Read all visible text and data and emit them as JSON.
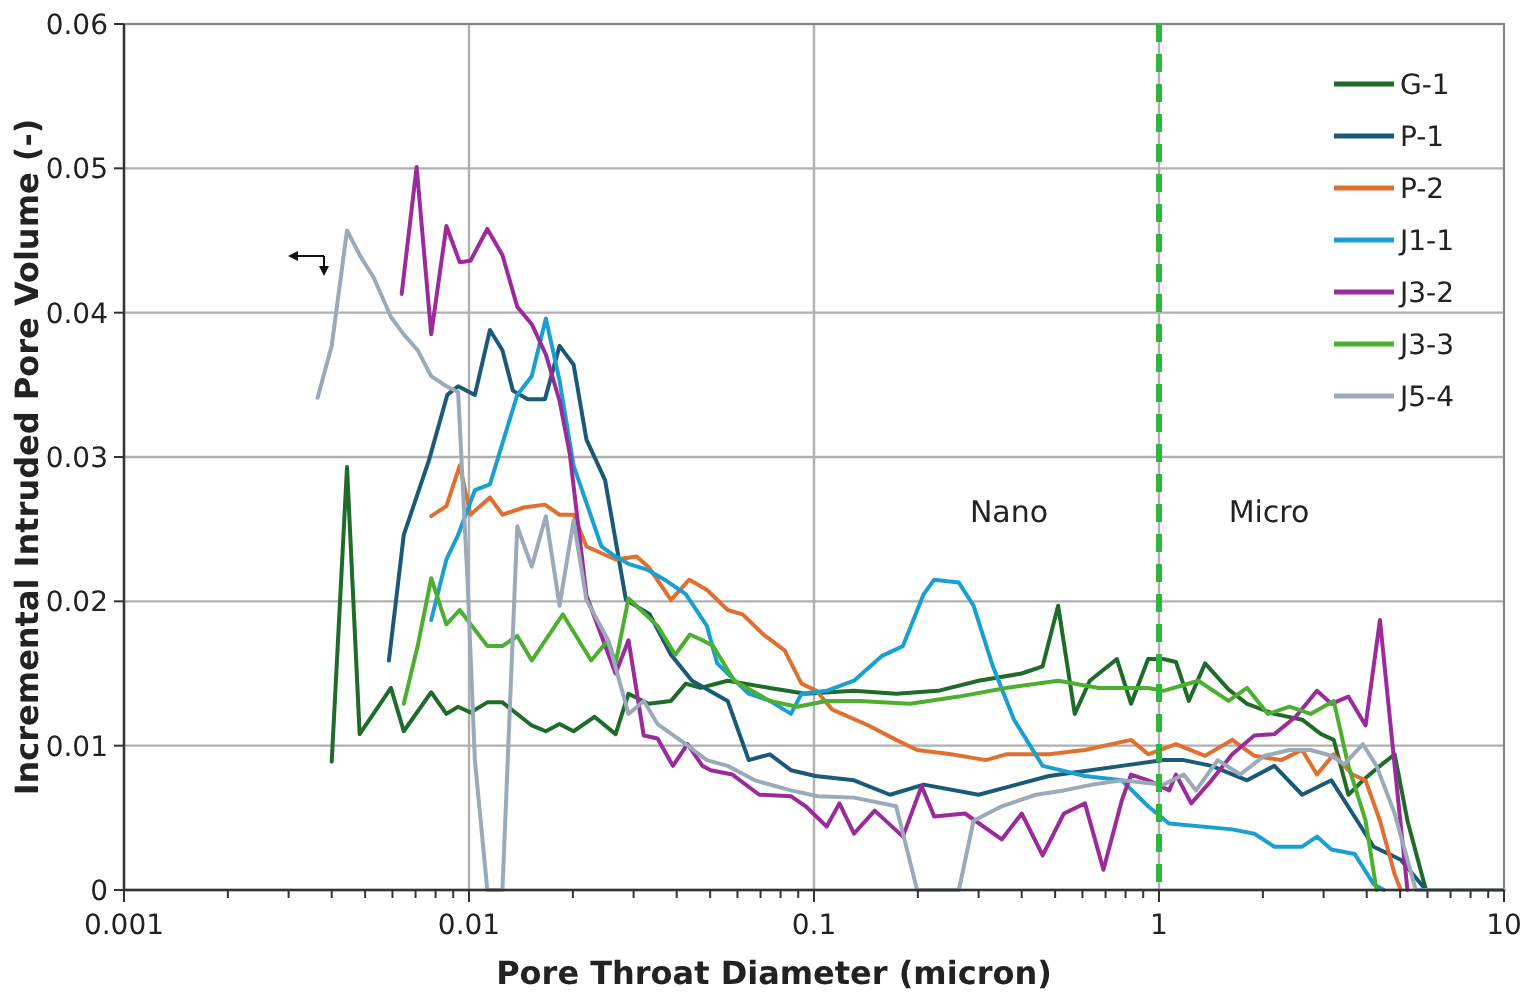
{
  "chart_data": {
    "type": "line",
    "xlabel": "Pore Throat Diameter (micron)",
    "ylabel": "Incremental Intruded Pore Volume (-)",
    "log": "x",
    "grid": true,
    "legend": "top right",
    "line_style": "solid",
    "xlim": [
      0.001,
      10
    ],
    "ylim": [
      0,
      0.06
    ],
    "yticks": [
      0,
      0.01,
      0.02,
      0.03,
      0.04,
      0.05,
      0.06
    ],
    "xticks": [
      0.001,
      {
        "value": 0.002,
        "label": null
      },
      {
        "value": 0.003,
        "label": null
      },
      {
        "value": 0.004,
        "label": null
      },
      {
        "value": 0.005,
        "label": null
      },
      {
        "value": 0.006,
        "label": null
      },
      {
        "value": 0.007,
        "label": null
      },
      {
        "value": 0.008,
        "label": null
      },
      {
        "value": 0.009,
        "label": null
      },
      0.01,
      {
        "value": 0.02,
        "label": null
      },
      {
        "value": 0.03,
        "label": null
      },
      {
        "value": 0.04,
        "label": null
      },
      {
        "value": 0.05,
        "label": null
      },
      {
        "value": 0.06,
        "label": null
      },
      {
        "value": 0.07,
        "label": null
      },
      {
        "value": 0.08,
        "label": null
      },
      {
        "value": 0.09,
        "label": null
      },
      0.1,
      {
        "value": 0.2,
        "label": null
      },
      {
        "value": 0.3,
        "label": null
      },
      {
        "value": 0.4,
        "label": null
      },
      {
        "value": 0.5,
        "label": null
      },
      {
        "value": 0.6,
        "label": null
      },
      {
        "value": 0.7,
        "label": null
      },
      {
        "value": 0.8,
        "label": null
      },
      {
        "value": 0.9,
        "label": null
      },
      1,
      {
        "value": 2,
        "label": null
      },
      {
        "value": 3,
        "label": null
      },
      {
        "value": 4,
        "label": null
      },
      {
        "value": 5,
        "label": null
      },
      {
        "value": 6,
        "label": null
      },
      {
        "value": 7,
        "label": null
      },
      {
        "value": 8,
        "label": null
      },
      {
        "value": 9,
        "label": null
      },
      10
    ],
    "ref_lines": [
      {
        "axis": "x",
        "value": 1,
        "color": "#2db83d",
        "line_style": "dashed"
      }
    ],
    "annotations": [
      "Nano",
      "Micro"
    ],
    "series": [
      {
        "name": "G-1",
        "color": "#1e6b2a",
        "x": [
          0.004,
          0.00443,
          0.00482,
          0.00594,
          0.00647,
          0.00777,
          0.0086,
          0.0093,
          0.0101,
          0.0113,
          0.0125,
          0.0152,
          0.0167,
          0.0183,
          0.0201,
          0.0231,
          0.0266,
          0.029,
          0.0331,
          0.0385,
          0.0425,
          0.0469,
          0.0562,
          0.0745,
          0.0946,
          0.1306,
          0.173,
          0.229,
          0.3,
          0.4,
          0.46,
          0.51,
          0.57,
          0.63,
          0.755,
          0.83,
          0.93,
          1.03,
          1.12,
          1.22,
          1.36,
          1.59,
          1.8,
          2.16,
          2.6,
          2.95,
          3.21,
          3.54,
          3.9,
          4.37,
          4.82,
          5.25,
          5.94
        ],
        "values": [
          0.0089,
          0.0293,
          0.0108,
          0.014,
          0.011,
          0.0137,
          0.0122,
          0.0127,
          0.0123,
          0.013,
          0.013,
          0.0114,
          0.011,
          0.0115,
          0.011,
          0.012,
          0.0108,
          0.0136,
          0.0129,
          0.0131,
          0.0143,
          0.014,
          0.0145,
          0.014,
          0.0136,
          0.0138,
          0.0136,
          0.0138,
          0.0145,
          0.015,
          0.0155,
          0.0197,
          0.0122,
          0.0145,
          0.016,
          0.0129,
          0.016,
          0.016,
          0.0158,
          0.0131,
          0.0157,
          0.0139,
          0.0129,
          0.0122,
          0.0118,
          0.0108,
          0.0104,
          0.0066,
          0.0076,
          0.0086,
          0.0094,
          0.0048,
          0
        ]
      },
      {
        "name": "P-1",
        "color": "#1a5a78",
        "x": [
          0.00586,
          0.00647,
          0.00766,
          0.00865,
          0.0093,
          0.0104,
          0.0115,
          0.0125,
          0.0134,
          0.0148,
          0.0166,
          0.0183,
          0.0201,
          0.0219,
          0.0248,
          0.0285,
          0.0334,
          0.0385,
          0.0443,
          0.0562,
          0.0647,
          0.0745,
          0.0857,
          0.101,
          0.1306,
          0.166,
          0.208,
          0.3,
          0.48,
          0.78,
          1.03,
          1.18,
          1.42,
          1.8,
          2.16,
          2.6,
          3.16,
          3.64,
          4.19,
          5.02,
          5.94
        ],
        "values": [
          0.0159,
          0.0246,
          0.0298,
          0.0343,
          0.0349,
          0.0343,
          0.0388,
          0.0374,
          0.0346,
          0.034,
          0.034,
          0.0377,
          0.0364,
          0.0312,
          0.0284,
          0.0201,
          0.0191,
          0.0163,
          0.0145,
          0.0131,
          0.009,
          0.0094,
          0.0083,
          0.0079,
          0.0076,
          0.0066,
          0.0073,
          0.0066,
          0.0079,
          0.0086,
          0.009,
          0.009,
          0.0086,
          0.0076,
          0.0086,
          0.0066,
          0.0076,
          0.0053,
          0.003,
          0.0021,
          0
        ]
      },
      {
        "name": "P-2",
        "color": "#e07030",
        "x": [
          0.00777,
          0.0086,
          0.0094,
          0.0101,
          0.0115,
          0.0125,
          0.0144,
          0.0166,
          0.0183,
          0.0201,
          0.0219,
          0.0266,
          0.0306,
          0.0331,
          0.0385,
          0.0435,
          0.0489,
          0.0562,
          0.0621,
          0.0714,
          0.0822,
          0.092,
          0.1016,
          0.113,
          0.144,
          0.173,
          0.199,
          0.25,
          0.315,
          0.36,
          0.48,
          0.61,
          0.83,
          0.93,
          1.12,
          1.36,
          1.63,
          1.89,
          2.26,
          2.6,
          2.87,
          3.21,
          3.64,
          3.97,
          4.37,
          4.82,
          5.02
        ],
        "values": [
          0.0259,
          0.0266,
          0.0294,
          0.026,
          0.0272,
          0.026,
          0.0265,
          0.0267,
          0.026,
          0.026,
          0.0238,
          0.0229,
          0.0231,
          0.0224,
          0.0201,
          0.0215,
          0.0208,
          0.0194,
          0.0191,
          0.0177,
          0.0166,
          0.0143,
          0.0138,
          0.0125,
          0.0114,
          0.0104,
          0.0097,
          0.0094,
          0.009,
          0.0094,
          0.0094,
          0.0097,
          0.0104,
          0.0094,
          0.0101,
          0.0093,
          0.0104,
          0.0093,
          0.009,
          0.0097,
          0.008,
          0.0094,
          0.008,
          0.0076,
          0.0048,
          0.0011,
          0
        ]
      },
      {
        "name": "J1-1",
        "color": "#1aa0d0",
        "x": [
          0.00777,
          0.0086,
          0.0093,
          0.0104,
          0.0115,
          0.0138,
          0.0152,
          0.0167,
          0.0183,
          0.0201,
          0.0242,
          0.0266,
          0.029,
          0.0328,
          0.0369,
          0.0425,
          0.0489,
          0.0524,
          0.0647,
          0.0745,
          0.0857,
          0.092,
          0.1088,
          0.1306,
          0.157,
          0.181,
          0.208,
          0.223,
          0.263,
          0.29,
          0.33,
          0.38,
          0.46,
          0.61,
          0.78,
          0.93,
          1.07,
          1.63,
          1.89,
          2.16,
          2.6,
          2.87,
          3.16,
          3.69,
          4.19,
          4.49
        ],
        "values": [
          0.0187,
          0.0229,
          0.0246,
          0.0277,
          0.0281,
          0.0343,
          0.0356,
          0.0396,
          0.0353,
          0.0294,
          0.0238,
          0.0231,
          0.0226,
          0.0222,
          0.0215,
          0.0205,
          0.0183,
          0.0157,
          0.0136,
          0.0131,
          0.0122,
          0.0136,
          0.0138,
          0.0145,
          0.0162,
          0.0169,
          0.0205,
          0.0215,
          0.0213,
          0.0197,
          0.0155,
          0.0118,
          0.0086,
          0.0079,
          0.0076,
          0.0058,
          0.0046,
          0.0042,
          0.0039,
          0.003,
          0.003,
          0.0037,
          0.0028,
          0.0025,
          0.0004,
          0
        ]
      },
      {
        "name": "J3-2",
        "color": "#9b2a9b",
        "x": [
          0.00638,
          0.00705,
          0.00777,
          0.0086,
          0.0094,
          0.0101,
          0.0113,
          0.0125,
          0.0138,
          0.0152,
          0.0167,
          0.0183,
          0.0196,
          0.0219,
          0.0266,
          0.029,
          0.0321,
          0.0352,
          0.039,
          0.043,
          0.0475,
          0.0502,
          0.058,
          0.0694,
          0.0857,
          0.0946,
          0.1088,
          0.1185,
          0.1306,
          0.15,
          0.181,
          0.205,
          0.223,
          0.274,
          0.35,
          0.4,
          0.46,
          0.53,
          0.61,
          0.69,
          0.78,
          0.83,
          0.93,
          1.07,
          1.12,
          1.24,
          1.42,
          1.63,
          1.89,
          2.16,
          2.49,
          2.87,
          3.16,
          3.54,
          3.97,
          4.37,
          4.82,
          5.25
        ],
        "values": [
          0.0413,
          0.0501,
          0.0385,
          0.046,
          0.0435,
          0.0436,
          0.0458,
          0.044,
          0.0404,
          0.0392,
          0.0371,
          0.0339,
          0.0302,
          0.0204,
          0.015,
          0.0173,
          0.0107,
          0.0105,
          0.0086,
          0.0101,
          0.0086,
          0.0083,
          0.008,
          0.0066,
          0.0065,
          0.0058,
          0.0044,
          0.006,
          0.0039,
          0.0055,
          0.0037,
          0.0072,
          0.0051,
          0.0053,
          0.0035,
          0.0053,
          0.0024,
          0.0053,
          0.006,
          0.0014,
          0.0062,
          0.008,
          0.0076,
          0.0069,
          0.008,
          0.006,
          0.0076,
          0.0094,
          0.0107,
          0.0108,
          0.012,
          0.0138,
          0.0129,
          0.0134,
          0.0114,
          0.0187,
          0.0086,
          0
        ]
      },
      {
        "name": "J3-3",
        "color": "#4caf30",
        "x": [
          0.00647,
          0.0071,
          0.00777,
          0.0086,
          0.0094,
          0.0113,
          0.0125,
          0.0138,
          0.0152,
          0.0187,
          0.0226,
          0.0253,
          0.0266,
          0.029,
          0.0352,
          0.0396,
          0.0437,
          0.0475,
          0.051,
          0.0587,
          0.0745,
          0.0894,
          0.1088,
          0.135,
          0.19,
          0.263,
          0.36,
          0.51,
          0.67,
          0.93,
          1.03,
          1.3,
          1.59,
          1.8,
          2.07,
          2.39,
          2.75,
          3.21,
          3.54,
          3.97,
          4.27
        ],
        "values": [
          0.0129,
          0.0169,
          0.0216,
          0.0184,
          0.0194,
          0.0169,
          0.0169,
          0.0176,
          0.0159,
          0.0191,
          0.0159,
          0.0173,
          0.0157,
          0.0202,
          0.0183,
          0.0163,
          0.0177,
          0.0173,
          0.0169,
          0.0145,
          0.0131,
          0.0127,
          0.0131,
          0.0131,
          0.0129,
          0.0134,
          0.014,
          0.0145,
          0.014,
          0.014,
          0.0138,
          0.0145,
          0.0131,
          0.014,
          0.0122,
          0.0127,
          0.0122,
          0.0131,
          0.0086,
          0.0048,
          0
        ]
      },
      {
        "name": "J5-4",
        "color": "#9aaabb",
        "x": [
          0.00364,
          0.004,
          0.00443,
          0.00482,
          0.0053,
          0.00594,
          0.00647,
          0.0071,
          0.00777,
          0.0086,
          0.0093,
          0.0099,
          0.0104,
          0.0113,
          0.0125,
          0.0138,
          0.0152,
          0.0167,
          0.0183,
          0.0201,
          0.0219,
          0.0253,
          0.029,
          0.0321,
          0.0352,
          0.0425,
          0.0489,
          0.0562,
          0.0674,
          0.0857,
          0.1027,
          0.1306,
          0.173,
          0.199,
          0.263,
          0.29,
          0.35,
          0.44,
          0.53,
          0.64,
          0.78,
          1.03,
          1.18,
          1.28,
          1.48,
          1.72,
          2.02,
          2.39,
          2.75,
          3.16,
          3.44,
          3.9,
          4.27,
          4.82,
          5.55,
          7,
          10
        ],
        "values": [
          0.0341,
          0.0377,
          0.0457,
          0.044,
          0.0424,
          0.0397,
          0.0385,
          0.0374,
          0.0356,
          0.0349,
          0.0345,
          0.0215,
          0.009,
          0,
          0,
          0.0252,
          0.0224,
          0.0259,
          0.0197,
          0.0256,
          0.0201,
          0.0173,
          0.0122,
          0.0131,
          0.0115,
          0.0101,
          0.009,
          0.0086,
          0.0076,
          0.0069,
          0.0065,
          0.0064,
          0.0058,
          0,
          0,
          0.0048,
          0.0058,
          0.0066,
          0.0069,
          0.0073,
          0.0076,
          0.0073,
          0.008,
          0.0069,
          0.009,
          0.008,
          0.0093,
          0.0097,
          0.0097,
          0.0093,
          0.0087,
          0.0101,
          0.0086,
          0.0053,
          0,
          0,
          0
        ]
      }
    ]
  }
}
